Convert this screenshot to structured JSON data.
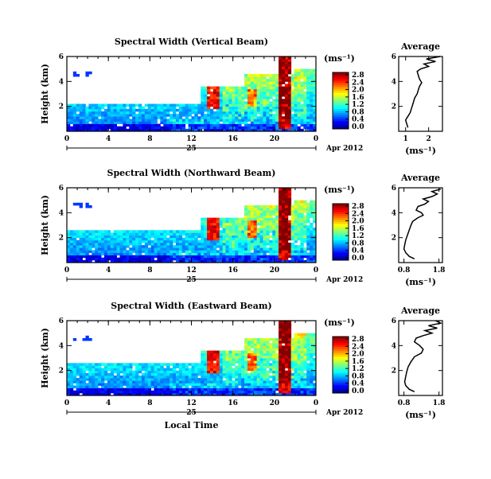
{
  "chart_data": [
    {
      "type": "heatmap",
      "title": "Spectral Width (Vertical Beam)",
      "ylabel": "Height (km)",
      "xticks": [
        "0",
        "4",
        "8",
        "12",
        "16",
        "20",
        "0"
      ],
      "yticks": [
        "2",
        "4",
        "6"
      ],
      "xlim": [
        0,
        24
      ],
      "ylim": [
        0,
        6
      ],
      "date_label": "25",
      "date_suffix": "Apr 2012",
      "colorbar": {
        "unit": "(ms⁻¹)",
        "ticks": [
          "0.0",
          "0.4",
          "0.8",
          "1.2",
          "1.6",
          "2.0",
          "2.4",
          "2.8"
        ],
        "range": [
          0,
          2.8
        ]
      },
      "avg_profile": {
        "title": "Average",
        "xlabel": "(ms⁻¹)",
        "xticks": [
          "1",
          "2"
        ],
        "xlim": [
          0.7,
          2.6
        ],
        "yticks": [
          "2",
          "4",
          "6"
        ],
        "ylim": [
          0,
          6
        ],
        "points": [
          [
            1.1,
            0.3
          ],
          [
            1.05,
            0.6
          ],
          [
            1.0,
            0.9
          ],
          [
            1.1,
            1.2
          ],
          [
            1.2,
            1.5
          ],
          [
            1.25,
            1.8
          ],
          [
            1.3,
            2.1
          ],
          [
            1.35,
            2.4
          ],
          [
            1.4,
            2.7
          ],
          [
            1.5,
            3.0
          ],
          [
            1.55,
            3.3
          ],
          [
            1.6,
            3.6
          ],
          [
            1.7,
            3.9
          ],
          [
            1.6,
            4.2
          ],
          [
            1.55,
            4.5
          ],
          [
            1.5,
            4.8
          ],
          [
            1.65,
            5.0
          ],
          [
            2.0,
            5.2
          ],
          [
            1.8,
            5.4
          ],
          [
            2.3,
            5.6
          ],
          [
            1.9,
            5.8
          ],
          [
            2.5,
            6.0
          ]
        ]
      }
    },
    {
      "type": "heatmap",
      "title": "Spectral Width (Northward Beam)",
      "ylabel": "Height (km)",
      "xticks": [
        "0",
        "4",
        "8",
        "12",
        "16",
        "20",
        "0"
      ],
      "yticks": [
        "2",
        "4",
        "6"
      ],
      "xlim": [
        0,
        24
      ],
      "ylim": [
        0,
        6
      ],
      "date_label": "25",
      "date_suffix": "Apr 2012",
      "colorbar": {
        "unit": "(ms⁻¹)",
        "ticks": [
          "0.0",
          "0.4",
          "0.8",
          "1.2",
          "1.6",
          "2.0",
          "2.4",
          "2.8"
        ],
        "range": [
          0,
          2.8
        ]
      },
      "avg_profile": {
        "title": "Average",
        "xlabel": "(ms⁻¹)",
        "xticks": [
          "0.8",
          "1.8"
        ],
        "xlim": [
          0.65,
          1.9
        ],
        "yticks": [
          "2",
          "4",
          "6"
        ],
        "ylim": [
          0,
          6
        ],
        "points": [
          [
            1.1,
            0.3
          ],
          [
            0.95,
            0.5
          ],
          [
            0.85,
            0.8
          ],
          [
            0.8,
            1.1
          ],
          [
            0.82,
            1.4
          ],
          [
            0.85,
            1.8
          ],
          [
            0.9,
            2.2
          ],
          [
            0.95,
            2.6
          ],
          [
            1.0,
            3.0
          ],
          [
            1.05,
            3.3
          ],
          [
            1.2,
            3.6
          ],
          [
            1.35,
            3.8
          ],
          [
            1.3,
            4.0
          ],
          [
            1.15,
            4.2
          ],
          [
            1.2,
            4.5
          ],
          [
            1.4,
            4.7
          ],
          [
            1.5,
            4.9
          ],
          [
            1.35,
            5.1
          ],
          [
            1.6,
            5.3
          ],
          [
            1.75,
            5.5
          ],
          [
            1.6,
            5.7
          ],
          [
            1.85,
            5.9
          ]
        ]
      }
    },
    {
      "type": "heatmap",
      "title": "Spectral Width (Eastward Beam)",
      "ylabel": "Height (km)",
      "xlabel": "Local Time",
      "xticks": [
        "0",
        "4",
        "8",
        "12",
        "16",
        "20",
        "0"
      ],
      "yticks": [
        "2",
        "4",
        "6"
      ],
      "xlim": [
        0,
        24
      ],
      "ylim": [
        0,
        6
      ],
      "date_label": "25",
      "date_suffix": "Apr 2012",
      "colorbar": {
        "unit": "(ms⁻¹)",
        "ticks": [
          "0.0",
          "0.4",
          "0.8",
          "1.2",
          "1.6",
          "2.0",
          "2.4",
          "2.8"
        ],
        "range": [
          0,
          2.8
        ]
      },
      "avg_profile": {
        "title": "Average",
        "xlabel": "(ms⁻¹)",
        "xticks": [
          "0.8",
          "1.8"
        ],
        "xlim": [
          0.65,
          1.9
        ],
        "yticks": [
          "2",
          "4",
          "6"
        ],
        "ylim": [
          0,
          6
        ],
        "points": [
          [
            1.1,
            0.3
          ],
          [
            0.95,
            0.5
          ],
          [
            0.85,
            0.8
          ],
          [
            0.82,
            1.1
          ],
          [
            0.85,
            1.5
          ],
          [
            0.88,
            1.9
          ],
          [
            0.92,
            2.3
          ],
          [
            1.0,
            2.7
          ],
          [
            1.1,
            3.1
          ],
          [
            1.3,
            3.4
          ],
          [
            1.35,
            3.7
          ],
          [
            1.25,
            4.0
          ],
          [
            1.1,
            4.3
          ],
          [
            1.15,
            4.6
          ],
          [
            1.35,
            4.8
          ],
          [
            1.6,
            5.0
          ],
          [
            1.4,
            5.2
          ],
          [
            1.75,
            5.4
          ],
          [
            1.5,
            5.6
          ],
          [
            1.85,
            5.8
          ],
          [
            1.7,
            6.0
          ]
        ]
      }
    }
  ]
}
